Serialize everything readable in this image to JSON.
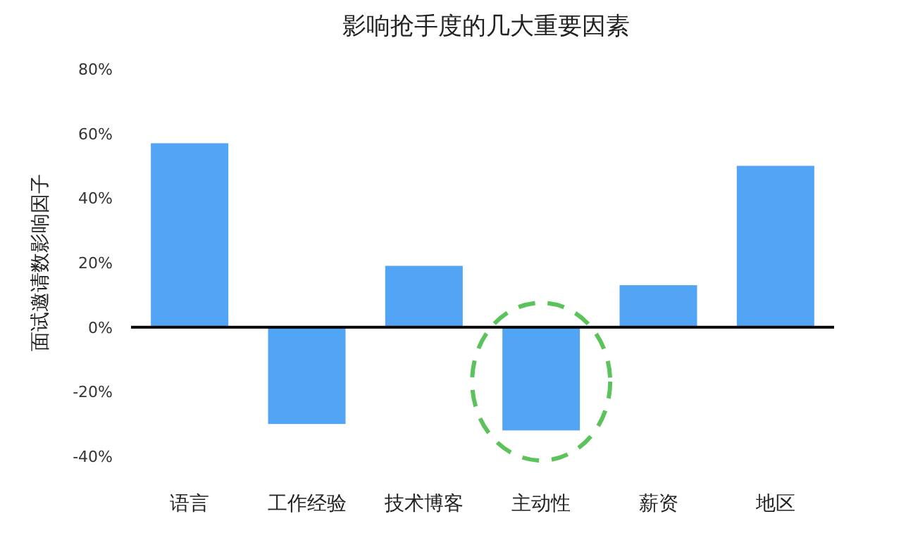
{
  "chart_data": {
    "type": "bar",
    "title": "影响抢手度的几大重要因素",
    "ylabel": "面试邀请数影响因子",
    "categories": [
      "语言",
      "工作经验",
      "技术博客",
      "主动性",
      "薪资",
      "地区"
    ],
    "values": [
      57,
      -30,
      19,
      -32,
      13,
      50
    ],
    "color": "#52a5f5",
    "ylim": [
      -40,
      80
    ],
    "yticks": [
      {
        "value": -40,
        "label": "-40%"
      },
      {
        "value": -20,
        "label": "-20%"
      },
      {
        "value": 0,
        "label": "0%"
      },
      {
        "value": 20,
        "label": "20%"
      },
      {
        "value": 40,
        "label": "40%"
      },
      {
        "value": 60,
        "label": "60%"
      },
      {
        "value": 80,
        "label": "80%"
      }
    ],
    "data_labels": false
  }
}
